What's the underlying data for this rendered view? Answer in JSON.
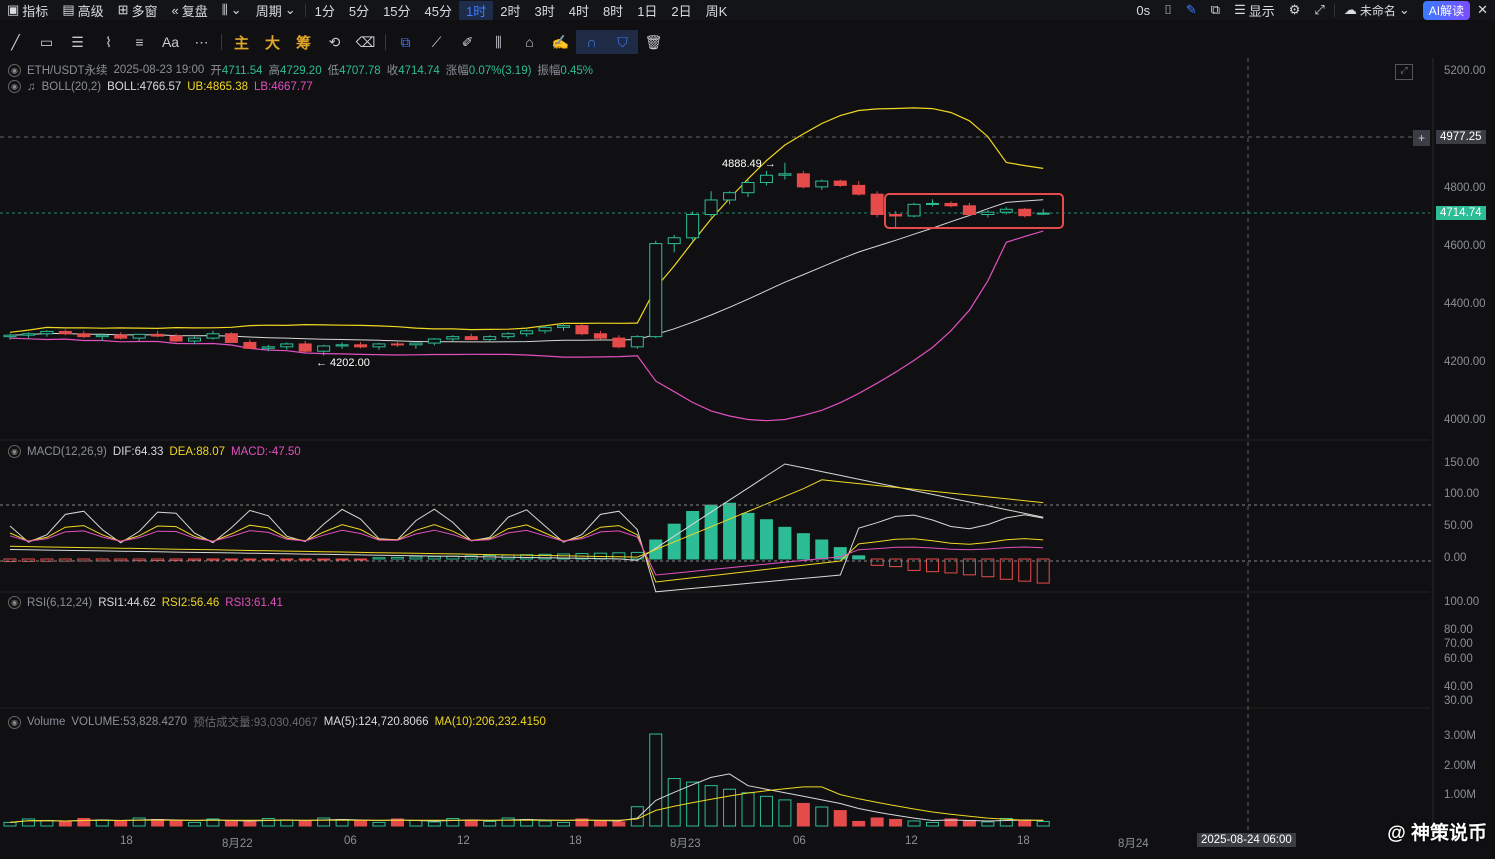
{
  "topbar": {
    "left": [
      {
        "label": "指标",
        "icon": "indicator-icon"
      },
      {
        "label": "高级",
        "icon": "advanced-icon"
      },
      {
        "label": "多窗",
        "icon": "multi-window-icon"
      },
      {
        "label": "复盘",
        "icon": "replay-icon"
      },
      {
        "label": "",
        "icon": "chart-type-icon"
      },
      {
        "label": "周期",
        "icon": "chevron-down-icon"
      }
    ],
    "intervals": [
      "1分",
      "5分",
      "15分",
      "45分",
      "1时",
      "2时",
      "3时",
      "4时",
      "8时",
      "1日",
      "2日",
      "周K"
    ],
    "active_interval": "1时",
    "countdown": "0s",
    "display_label": "显示",
    "layout_name": "未命名",
    "ai_label": "AI解读"
  },
  "toolbar": {
    "gold": [
      "主",
      "大",
      "筹"
    ],
    "text_tool": "Aa"
  },
  "main": {
    "symbol": "ETH/USDT永续",
    "datetime": "2025-08-23 19:00",
    "open_label": "开",
    "open": "4711.54",
    "high_label": "高",
    "high": "4729.20",
    "low_label": "低",
    "low": "4707.78",
    "close_label": "收",
    "close": "4714.74",
    "change_label": "涨幅",
    "change": "0.07%(3.19)",
    "amp_label": "振幅",
    "amp": "0.45%",
    "boll_name": "BOLL(20,2)",
    "boll": "BOLL:4766.57",
    "ub": "UB:4865.38",
    "lb": "LB:4667.77",
    "peak_label": "4888.49 →",
    "trough_label": "← 4202.00",
    "price_axis": [
      "5200.00",
      "4800.00",
      "4600.00",
      "4400.00",
      "4200.00",
      "4000.00"
    ],
    "crosshair_price": "4977.25",
    "last_price": "4714.74"
  },
  "macd": {
    "name": "MACD(12,26,9)",
    "dif": "DIF:64.33",
    "dea": "DEA:88.07",
    "macd": "MACD:-47.50",
    "axis": [
      "150.00",
      "100.00",
      "50.00",
      "0.00"
    ]
  },
  "rsi": {
    "name": "RSI(6,12,24)",
    "rsi1": "RSI1:44.62",
    "rsi2": "RSI2:56.46",
    "rsi3": "RSI3:61.41",
    "axis": [
      "100.00",
      "80.00",
      "70.00",
      "60.00",
      "40.00",
      "30.00"
    ]
  },
  "volume": {
    "name": "Volume",
    "vol": "VOLUME:53,828.4270",
    "est": "预估成交量:93,030.4067",
    "ma5": "MA(5):124,720.8066",
    "ma10": "MA(10):206,232.4150",
    "axis": [
      "3.00M",
      "2.00M",
      "1.00M"
    ]
  },
  "time_axis": [
    "18",
    "8月22",
    "06",
    "12",
    "18",
    "8月23",
    "06",
    "12",
    "18",
    "8月24"
  ],
  "crosshair_time": "2025-08-24 06:00",
  "watermark": "@ 神策说币",
  "colors": {
    "up": "#2dbd96",
    "down": "#e64b4b",
    "boll": "#d8d8d8",
    "ub": "#f0d722",
    "lb": "#e24fc1",
    "accent": "#3d7cff"
  },
  "chart_data": {
    "type": "candlestick",
    "title": "ETH/USDT永续 1时",
    "candles": [
      [
        4290,
        4300,
        4280,
        4295
      ],
      [
        4295,
        4305,
        4285,
        4300
      ],
      [
        4300,
        4312,
        4290,
        4308
      ],
      [
        4308,
        4315,
        4295,
        4300
      ],
      [
        4300,
        4310,
        4285,
        4290
      ],
      [
        4290,
        4300,
        4275,
        4295
      ],
      [
        4295,
        4305,
        4280,
        4285
      ],
      [
        4285,
        4300,
        4275,
        4298
      ],
      [
        4298,
        4310,
        4288,
        4292
      ],
      [
        4292,
        4300,
        4270,
        4275
      ],
      [
        4275,
        4290,
        4265,
        4285
      ],
      [
        4285,
        4310,
        4280,
        4300
      ],
      [
        4300,
        4305,
        4270,
        4270
      ],
      [
        4270,
        4280,
        4248,
        4250
      ],
      [
        4250,
        4262,
        4240,
        4255
      ],
      [
        4255,
        4270,
        4245,
        4265
      ],
      [
        4265,
        4275,
        4235,
        4240
      ],
      [
        4240,
        4262,
        4225,
        4258
      ],
      [
        4258,
        4270,
        4248,
        4262
      ],
      [
        4262,
        4272,
        4250,
        4255
      ],
      [
        4255,
        4268,
        4245,
        4265
      ],
      [
        4265,
        4278,
        4255,
        4262
      ],
      [
        4262,
        4270,
        4248,
        4268
      ],
      [
        4268,
        4285,
        4260,
        4282
      ],
      [
        4282,
        4295,
        4275,
        4290
      ],
      [
        4290,
        4300,
        4278,
        4280
      ],
      [
        4280,
        4295,
        4272,
        4290
      ],
      [
        4290,
        4305,
        4282,
        4300
      ],
      [
        4300,
        4315,
        4290,
        4310
      ],
      [
        4310,
        4330,
        4300,
        4322
      ],
      [
        4322,
        4338,
        4310,
        4328
      ],
      [
        4328,
        4335,
        4295,
        4300
      ],
      [
        4300,
        4310,
        4280,
        4285
      ],
      [
        4285,
        4295,
        4250,
        4255
      ],
      [
        4255,
        4295,
        4248,
        4290
      ],
      [
        4290,
        4620,
        4285,
        4610
      ],
      [
        4610,
        4640,
        4580,
        4630
      ],
      [
        4630,
        4720,
        4620,
        4710
      ],
      [
        4710,
        4790,
        4700,
        4760
      ],
      [
        4760,
        4790,
        4745,
        4785
      ],
      [
        4785,
        4830,
        4770,
        4820
      ],
      [
        4820,
        4860,
        4810,
        4845
      ],
      [
        4845,
        4888,
        4830,
        4850
      ],
      [
        4850,
        4860,
        4800,
        4805
      ],
      [
        4805,
        4830,
        4795,
        4825
      ],
      [
        4825,
        4830,
        4805,
        4810
      ],
      [
        4810,
        4825,
        4775,
        4780
      ],
      [
        4780,
        4790,
        4700,
        4710
      ],
      [
        4710,
        4722,
        4660,
        4705
      ],
      [
        4705,
        4750,
        4700,
        4745
      ],
      [
        4745,
        4762,
        4738,
        4748
      ],
      [
        4748,
        4755,
        4735,
        4740
      ],
      [
        4740,
        4750,
        4705,
        4710
      ],
      [
        4710,
        4725,
        4700,
        4718
      ],
      [
        4718,
        4735,
        4710,
        4728
      ],
      [
        4728,
        4732,
        4700,
        4706
      ],
      [
        4711.54,
        4729.2,
        4707.78,
        4714.74
      ]
    ],
    "ylim": [
      3950,
      5250
    ]
  }
}
